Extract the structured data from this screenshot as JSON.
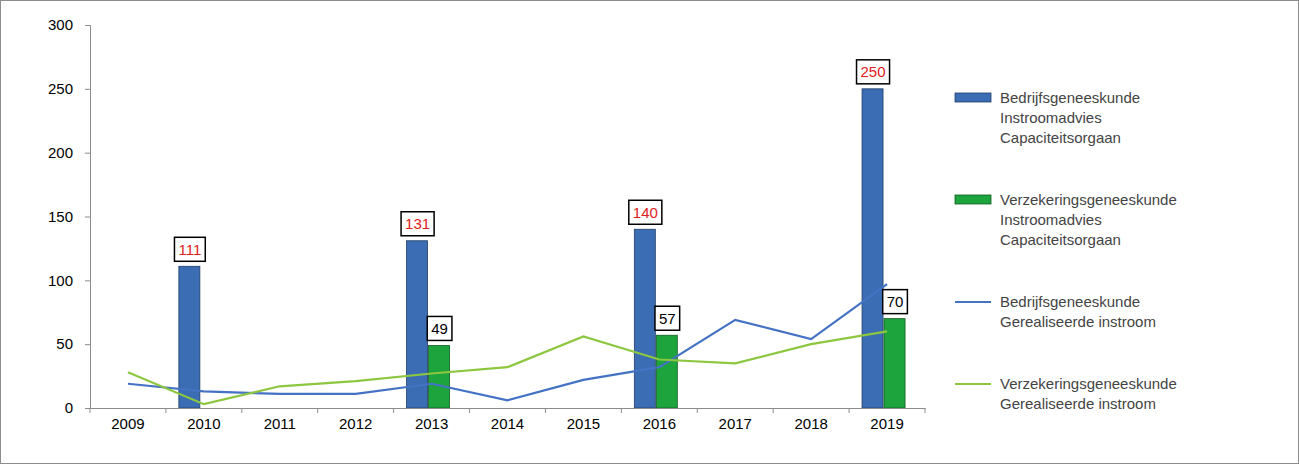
{
  "chart_data": {
    "type": "bar",
    "categories": [
      "2009",
      "2010",
      "2011",
      "2012",
      "2013",
      "2014",
      "2015",
      "2016",
      "2017",
      "2018",
      "2019"
    ],
    "ylim": [
      0,
      300
    ],
    "yticks": [
      0,
      50,
      100,
      150,
      200,
      250,
      300
    ],
    "grid": false,
    "legend": "right",
    "series": [
      {
        "name": "Bedrijfsgeneeskunde Instroomadvies Capaciteitsorgaan",
        "type": "bar",
        "color": "#3b6db4",
        "data_labels": true,
        "values": [
          null,
          111,
          null,
          null,
          131,
          null,
          null,
          140,
          null,
          null,
          250
        ]
      },
      {
        "name": "Verzekeringsgeneeskunde Instroomadvies Capaciteitsorgaan",
        "type": "bar",
        "color": "#1ea43c",
        "data_labels": true,
        "values": [
          null,
          null,
          null,
          null,
          49,
          null,
          null,
          57,
          null,
          null,
          70
        ]
      },
      {
        "name": "Bedrijfsgeneeskunde Gerealiseerde instroom",
        "type": "line",
        "color": "#4472c4",
        "values": [
          19,
          13,
          11,
          11,
          19,
          6,
          22,
          32,
          69,
          54,
          97
        ]
      },
      {
        "name": "Verzekeringsgeneeskunde Gerealiseerde instroom",
        "type": "line",
        "color": "#8dc63f",
        "values": [
          28,
          3,
          17,
          21,
          27,
          32,
          56,
          38,
          35,
          50,
          60
        ]
      }
    ]
  }
}
